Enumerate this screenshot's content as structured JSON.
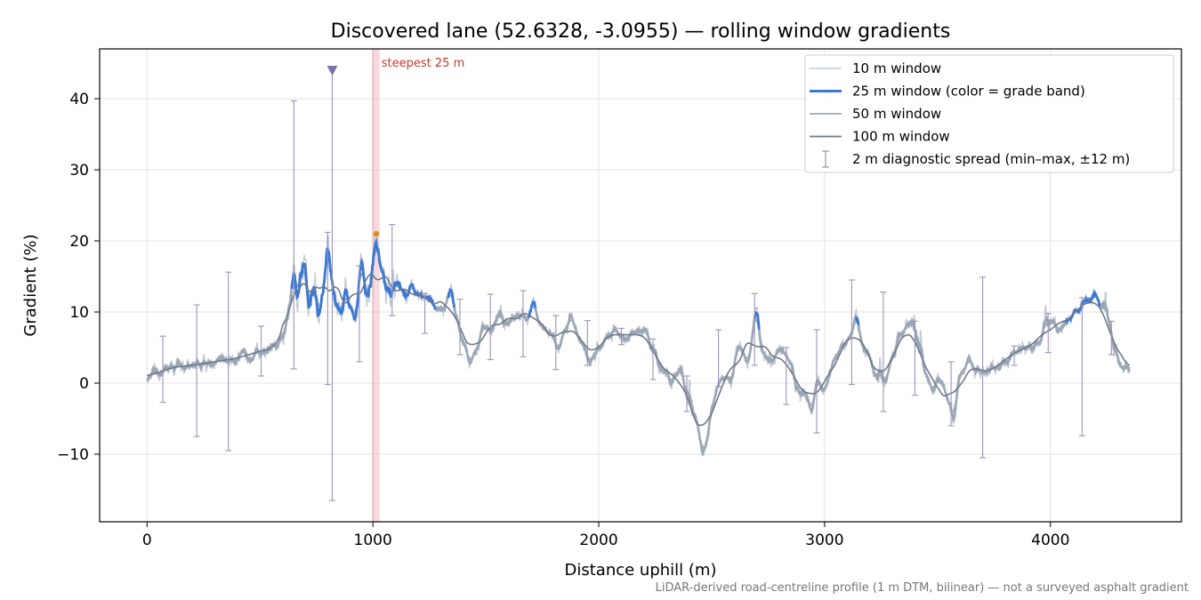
{
  "chart_data": {
    "type": "line",
    "title": "Discovered lane (52.6328, -3.0955) — rolling window gradients",
    "xlabel": "Distance uphill (m)",
    "ylabel": "Gradient (%)",
    "xlim": [
      -210,
      4580
    ],
    "ylim": [
      -19.5,
      47
    ],
    "xticks": [
      0,
      1000,
      2000,
      3000,
      4000
    ],
    "yticks": [
      -10,
      0,
      10,
      20,
      30,
      40
    ],
    "ytick_labels": [
      "−10",
      "0",
      "10",
      "20",
      "30",
      "40"
    ],
    "grid": true,
    "legend_position": "top-right",
    "footnote": "LiDAR-derived road-centreline profile (1 m DTM, bilinear) — not a surveyed asphalt gradient",
    "colors": {
      "w10": "#c3cbd5",
      "w25": "#3a78d8",
      "w50": "#9aa8b8",
      "w100": "#6e7a88",
      "errorbar": "#9b93b8",
      "steep_band": "#f4c6cc",
      "steep_line": "#e6a0a8",
      "steep_label": "#c0392b",
      "steep_point": "#e8890c",
      "marker": "#7b72a8"
    },
    "steepest": {
      "label": "steepest 25 m",
      "x_start": 1000,
      "x_end": 1030,
      "peak_x": 1015,
      "peak_y": 21.0
    },
    "marker_point": {
      "x": 820,
      "y": 44
    },
    "base_profile": [
      [
        0,
        0.5
      ],
      [
        50,
        1.5
      ],
      [
        100,
        2.2
      ],
      [
        200,
        2.5
      ],
      [
        300,
        3.0
      ],
      [
        400,
        3.5
      ],
      [
        500,
        4.5
      ],
      [
        580,
        5.0
      ],
      [
        620,
        8.0
      ],
      [
        640,
        12.0
      ],
      [
        650,
        19.0
      ],
      [
        665,
        11.0
      ],
      [
        680,
        16.0
      ],
      [
        700,
        17.0
      ],
      [
        715,
        10.0
      ],
      [
        740,
        14.0
      ],
      [
        760,
        9.0
      ],
      [
        780,
        13.0
      ],
      [
        800,
        20.0
      ],
      [
        815,
        15.0
      ],
      [
        830,
        12.0
      ],
      [
        850,
        10.0
      ],
      [
        880,
        13.0
      ],
      [
        900,
        11.0
      ],
      [
        920,
        9.5
      ],
      [
        950,
        17.0
      ],
      [
        970,
        12.0
      ],
      [
        990,
        13.0
      ],
      [
        1015,
        20.5
      ],
      [
        1040,
        14.0
      ],
      [
        1060,
        12.0
      ],
      [
        1080,
        13.0
      ],
      [
        1100,
        15.0
      ],
      [
        1120,
        13.0
      ],
      [
        1150,
        12.0
      ],
      [
        1175,
        13.5
      ],
      [
        1200,
        12.5
      ],
      [
        1230,
        11.5
      ],
      [
        1250,
        12.5
      ],
      [
        1280,
        10.5
      ],
      [
        1310,
        10.0
      ],
      [
        1345,
        13.5
      ],
      [
        1370,
        9.0
      ],
      [
        1400,
        6.0
      ],
      [
        1430,
        3.0
      ],
      [
        1460,
        5.0
      ],
      [
        1490,
        8.0
      ],
      [
        1520,
        7.0
      ],
      [
        1560,
        9.5
      ],
      [
        1600,
        8.0
      ],
      [
        1640,
        10.0
      ],
      [
        1680,
        9.0
      ],
      [
        1710,
        11.0
      ],
      [
        1740,
        8.0
      ],
      [
        1780,
        7.0
      ],
      [
        1820,
        5.0
      ],
      [
        1850,
        7.5
      ],
      [
        1880,
        9.5
      ],
      [
        1920,
        6.0
      ],
      [
        1960,
        3.0
      ],
      [
        2000,
        5.0
      ],
      [
        2040,
        7.0
      ],
      [
        2080,
        7.5
      ],
      [
        2120,
        6.0
      ],
      [
        2160,
        7.0
      ],
      [
        2200,
        7.5
      ],
      [
        2240,
        5.0
      ],
      [
        2280,
        1.5
      ],
      [
        2320,
        0.5
      ],
      [
        2360,
        2.0
      ],
      [
        2400,
        -3.0
      ],
      [
        2430,
        -5.0
      ],
      [
        2460,
        -10.0
      ],
      [
        2480,
        -8.0
      ],
      [
        2500,
        -3.0
      ],
      [
        2540,
        0.5
      ],
      [
        2580,
        0.0
      ],
      [
        2620,
        5.5
      ],
      [
        2660,
        3.0
      ],
      [
        2700,
        10.0
      ],
      [
        2720,
        4.0
      ],
      [
        2760,
        3.0
      ],
      [
        2800,
        4.5
      ],
      [
        2850,
        2.5
      ],
      [
        2880,
        -1.0
      ],
      [
        2910,
        -1.5
      ],
      [
        2940,
        -3.0
      ],
      [
        2970,
        0.0
      ],
      [
        3000,
        -1.5
      ],
      [
        3040,
        3.0
      ],
      [
        3080,
        5.0
      ],
      [
        3120,
        6.5
      ],
      [
        3140,
        9.5
      ],
      [
        3170,
        5.0
      ],
      [
        3200,
        4.0
      ],
      [
        3220,
        1.0
      ],
      [
        3260,
        0.0
      ],
      [
        3300,
        3.5
      ],
      [
        3340,
        7.0
      ],
      [
        3380,
        8.5
      ],
      [
        3420,
        5.0
      ],
      [
        3450,
        1.0
      ],
      [
        3480,
        -1.0
      ],
      [
        3510,
        0.5
      ],
      [
        3540,
        -2.0
      ],
      [
        3570,
        -5.0
      ],
      [
        3600,
        1.0
      ],
      [
        3640,
        3.0
      ],
      [
        3680,
        1.5
      ],
      [
        3720,
        1.5
      ],
      [
        3760,
        2.0
      ],
      [
        3800,
        3.5
      ],
      [
        3850,
        4.5
      ],
      [
        3900,
        5.0
      ],
      [
        3950,
        6.0
      ],
      [
        4000,
        8.5
      ],
      [
        4040,
        7.5
      ],
      [
        4080,
        9.5
      ],
      [
        4120,
        10.0
      ],
      [
        4160,
        11.5
      ],
      [
        4190,
        12.5
      ],
      [
        4220,
        11.0
      ],
      [
        4260,
        8.5
      ],
      [
        4290,
        4.0
      ],
      [
        4310,
        2.5
      ],
      [
        4350,
        2.0
      ]
    ],
    "steep_sections": [
      [
        640,
        1280
      ],
      [
        1330,
        1360
      ],
      [
        1690,
        1720
      ],
      [
        2690,
        2710
      ],
      [
        3140,
        3150
      ],
      [
        4070,
        4220
      ]
    ],
    "series": [
      {
        "name": "10 m window",
        "window_m": 10
      },
      {
        "name": "25 m window (color = grade band)",
        "window_m": 25
      },
      {
        "name": "50 m window",
        "window_m": 50
      },
      {
        "name": "100 m window",
        "window_m": 100
      },
      {
        "name": "2 m diagnostic spread (min–max, ±12 m)",
        "kind": "errorbar"
      }
    ],
    "diagnostic_spread": [
      {
        "x": 70,
        "min": -2.7,
        "max": 6.6
      },
      {
        "x": 220,
        "min": -7.5,
        "max": 11.0
      },
      {
        "x": 360,
        "min": -9.5,
        "max": 15.6
      },
      {
        "x": 505,
        "min": 1.0,
        "max": 8.0
      },
      {
        "x": 650,
        "min": 2.0,
        "max": 39.7
      },
      {
        "x": 800,
        "min": -0.2,
        "max": 21.2
      },
      {
        "x": 820,
        "min": -16.5,
        "max": 44.0
      },
      {
        "x": 940,
        "min": 3.0,
        "max": 16.5
      },
      {
        "x": 1085,
        "min": 9.5,
        "max": 22.3
      },
      {
        "x": 1230,
        "min": 7.0,
        "max": 12.6
      },
      {
        "x": 1385,
        "min": 4.0,
        "max": 11.8
      },
      {
        "x": 1520,
        "min": 3.3,
        "max": 12.5
      },
      {
        "x": 1665,
        "min": 3.7,
        "max": 13.0
      },
      {
        "x": 1810,
        "min": 1.9,
        "max": 9.5
      },
      {
        "x": 1950,
        "min": 2.5,
        "max": 8.8
      },
      {
        "x": 2100,
        "min": 5.4,
        "max": 7.7
      },
      {
        "x": 2240,
        "min": 0.5,
        "max": 6.2
      },
      {
        "x": 2390,
        "min": -4.0,
        "max": 1.0
      },
      {
        "x": 2530,
        "min": -0.5,
        "max": 7.5
      },
      {
        "x": 2690,
        "min": 2.5,
        "max": 12.6
      },
      {
        "x": 2830,
        "min": -3.0,
        "max": 5.0
      },
      {
        "x": 2965,
        "min": -7.0,
        "max": 7.5
      },
      {
        "x": 3120,
        "min": -0.2,
        "max": 14.5
      },
      {
        "x": 3260,
        "min": -4.0,
        "max": 12.8
      },
      {
        "x": 3400,
        "min": -1.7,
        "max": 8.7
      },
      {
        "x": 3560,
        "min": -6.0,
        "max": 3.0
      },
      {
        "x": 3700,
        "min": -10.5,
        "max": 14.9
      },
      {
        "x": 3840,
        "min": 2.5,
        "max": 5.2
      },
      {
        "x": 3990,
        "min": 4.3,
        "max": 9.8
      },
      {
        "x": 4140,
        "min": -7.4,
        "max": 12.0
      },
      {
        "x": 4270,
        "min": 4.0,
        "max": 8.7
      }
    ]
  }
}
